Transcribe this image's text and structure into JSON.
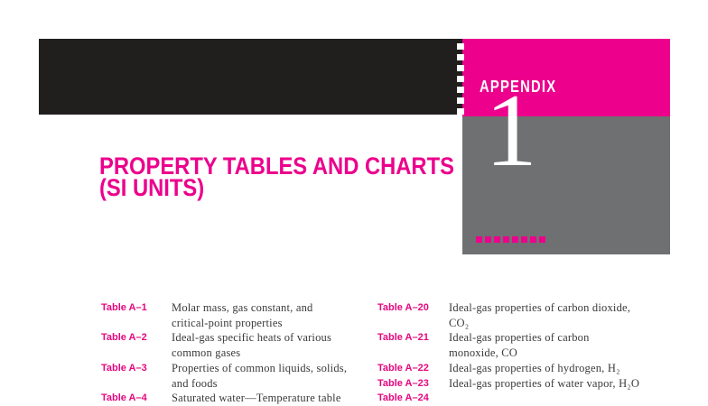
{
  "colors": {
    "magenta": "#EC008C",
    "label_magenta": "#E5077E",
    "bar_black": "#211E1E",
    "panel_gray": "#6F7072",
    "desc_text": "#3A3A3A"
  },
  "appendix": {
    "label": "APPENDIX",
    "number": "1"
  },
  "title": {
    "line1": "PROPERTY TABLES AND CHARTS",
    "line2": "(SI UNITS)"
  },
  "decorations": {
    "top_dash_count": 7,
    "bottom_dash_count": 8
  },
  "toc": {
    "left": [
      {
        "label": "Table A–1",
        "desc": "Molar mass, gas constant, and\ncritical-point properties"
      },
      {
        "label": "Table A–2",
        "desc": "Ideal-gas specific heats of various\ncommon gases"
      },
      {
        "label": "Table A–3",
        "desc": "Properties of common liquids, solids,\nand foods"
      },
      {
        "label": "Table A–4",
        "desc": "Saturated water—Temperature table"
      }
    ],
    "right": [
      {
        "label": "Table A–20",
        "desc": "Ideal-gas properties of carbon dioxide,\nCO₂"
      },
      {
        "label": "Table A–21",
        "desc": "Ideal-gas properties of carbon\nmonoxide, CO"
      },
      {
        "label": "Table A–22",
        "desc": "Ideal-gas properties of hydrogen, H₂"
      },
      {
        "label": "Table A–23",
        "desc": "Ideal-gas properties of water vapor, H₂O"
      },
      {
        "label": "Table A–24",
        "desc": ""
      }
    ]
  }
}
